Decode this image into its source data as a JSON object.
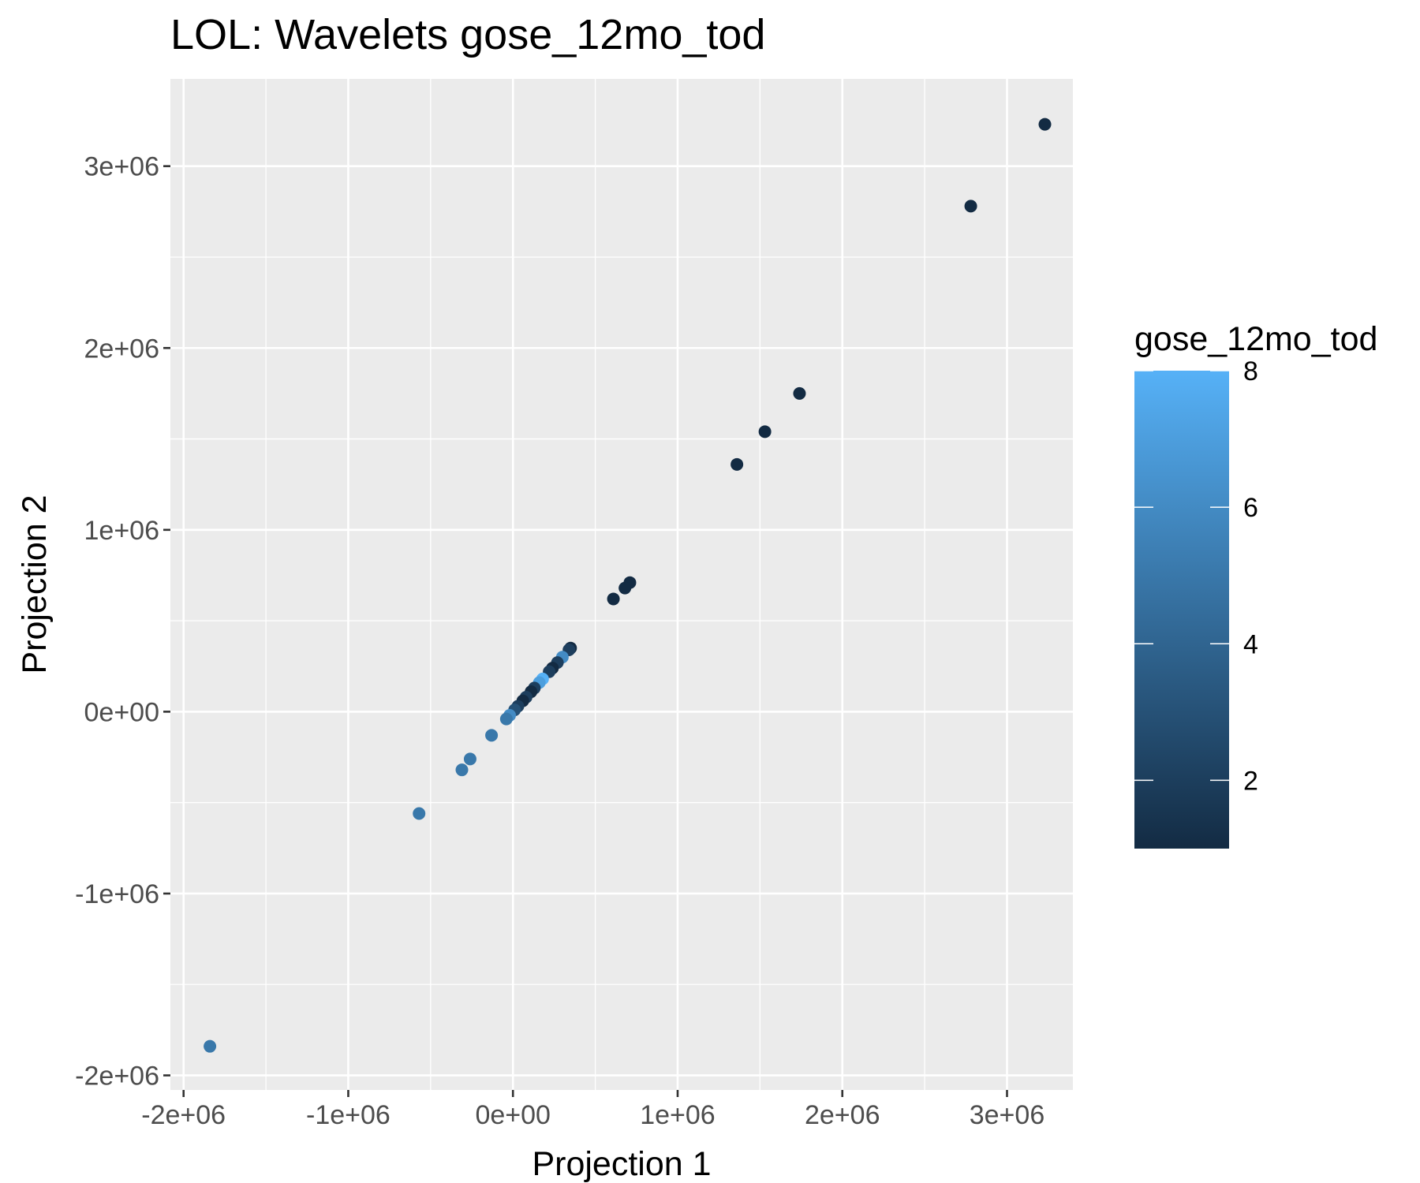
{
  "chart_data": {
    "type": "scatter",
    "title": "LOL: Wavelets gose_12mo_tod",
    "xlabel": "Projection 1",
    "ylabel": "Projection 2",
    "xlim": [
      -2080000,
      3400000
    ],
    "ylim": [
      -2080000,
      3480000
    ],
    "x_ticks": [
      {
        "value": -2000000,
        "label": "-2e+06"
      },
      {
        "value": -1000000,
        "label": "-1e+06"
      },
      {
        "value": 0,
        "label": "0e+00"
      },
      {
        "value": 1000000,
        "label": "1e+06"
      },
      {
        "value": 2000000,
        "label": "2e+06"
      },
      {
        "value": 3000000,
        "label": "3e+06"
      }
    ],
    "y_ticks": [
      {
        "value": -2000000,
        "label": "-2e+06"
      },
      {
        "value": -1000000,
        "label": "-1e+06"
      },
      {
        "value": 0,
        "label": "0e+00"
      },
      {
        "value": 1000000,
        "label": "1e+06"
      },
      {
        "value": 2000000,
        "label": "2e+06"
      },
      {
        "value": 3000000,
        "label": "3e+06"
      }
    ],
    "grid": true,
    "legend": {
      "title": "gose_12mo_tod",
      "position": "right",
      "type": "colorbar",
      "range": [
        1,
        8
      ],
      "ticks": [
        2,
        4,
        6,
        8
      ],
      "low_color": "#132B43",
      "high_color": "#56B1F7"
    },
    "points": [
      {
        "x": 3230000,
        "y": 3230000,
        "c": 1
      },
      {
        "x": 2780000,
        "y": 2780000,
        "c": 1
      },
      {
        "x": 1740000,
        "y": 1750000,
        "c": 1
      },
      {
        "x": 1530000,
        "y": 1540000,
        "c": 1
      },
      {
        "x": 1360000,
        "y": 1360000,
        "c": 1
      },
      {
        "x": 710000,
        "y": 710000,
        "c": 1
      },
      {
        "x": 680000,
        "y": 680000,
        "c": 1
      },
      {
        "x": 610000,
        "y": 620000,
        "c": 1
      },
      {
        "x": 350000,
        "y": 350000,
        "c": 1
      },
      {
        "x": 340000,
        "y": 340000,
        "c": 2
      },
      {
        "x": 300000,
        "y": 300000,
        "c": 6
      },
      {
        "x": 270000,
        "y": 270000,
        "c": 2
      },
      {
        "x": 240000,
        "y": 240000,
        "c": 1
      },
      {
        "x": 220000,
        "y": 220000,
        "c": 2
      },
      {
        "x": 180000,
        "y": 180000,
        "c": 8
      },
      {
        "x": 160000,
        "y": 160000,
        "c": 7
      },
      {
        "x": 130000,
        "y": 130000,
        "c": 2
      },
      {
        "x": 110000,
        "y": 110000,
        "c": 1
      },
      {
        "x": 80000,
        "y": 80000,
        "c": 2
      },
      {
        "x": 60000,
        "y": 60000,
        "c": 1
      },
      {
        "x": 30000,
        "y": 30000,
        "c": 2
      },
      {
        "x": 10000,
        "y": 10000,
        "c": 3
      },
      {
        "x": -20000,
        "y": -20000,
        "c": 6
      },
      {
        "x": -40000,
        "y": -40000,
        "c": 5
      },
      {
        "x": -130000,
        "y": -130000,
        "c": 5
      },
      {
        "x": -260000,
        "y": -260000,
        "c": 5
      },
      {
        "x": -310000,
        "y": -320000,
        "c": 5
      },
      {
        "x": -570000,
        "y": -560000,
        "c": 5
      },
      {
        "x": -1840000,
        "y": -1840000,
        "c": 5
      }
    ]
  }
}
